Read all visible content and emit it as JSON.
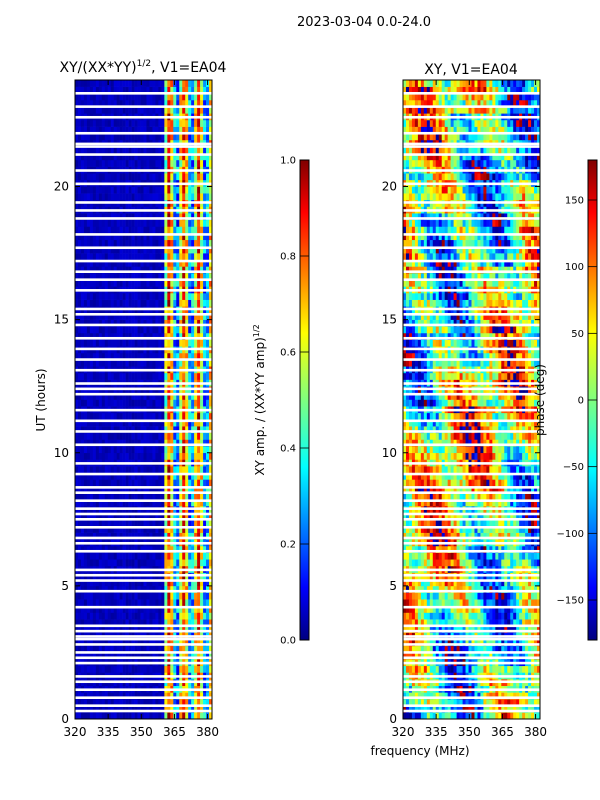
{
  "suptitle": "2023-03-04 0.0-24.0",
  "colors": {
    "jet": [
      "#000080",
      "#0000ff",
      "#00ffff",
      "#7fff7f",
      "#ffff00",
      "#ff0000",
      "#800000"
    ],
    "gap": "#ffffff"
  },
  "chart_data": [
    {
      "type": "heatmap",
      "title_main": "XY/(XX*YY)",
      "title_exp": "1/2",
      "title_suffix": ", V1=EA04",
      "xlabel": "",
      "ylabel": "UT (hours)",
      "xlim": [
        320,
        382
      ],
      "ylim": [
        0,
        24
      ],
      "xticks": [
        320,
        335,
        350,
        365,
        380
      ],
      "yticks": [
        0,
        5,
        10,
        15,
        20
      ],
      "colorbar": {
        "label_main": "XY amp. / (XX*YY amp)",
        "label_exp": "1/2",
        "range": [
          0.0,
          1.0
        ],
        "ticks": [
          "0.0",
          "0.2",
          "0.4",
          "0.6",
          "0.8",
          "1.0"
        ],
        "tick_values": [
          0.0,
          0.2,
          0.4,
          0.6,
          0.8,
          1.0
        ]
      },
      "value_description": "low (~0.05) below 361 MHz; bright vertical bands 361-382 MHz"
    },
    {
      "type": "heatmap",
      "title": "XY, V1=EA04",
      "xlabel": "frequency (MHz)",
      "ylabel": "",
      "xlim": [
        320,
        382
      ],
      "ylim": [
        0,
        24
      ],
      "xticks": [
        320,
        335,
        350,
        365,
        380
      ],
      "yticks": [
        0,
        5,
        10,
        15,
        20
      ],
      "colorbar": {
        "label": "phase (deg)",
        "range": [
          -180,
          180
        ],
        "ticks": [
          "−150",
          "−100",
          "−50",
          "0",
          "50",
          "100",
          "150"
        ],
        "tick_values": [
          -150,
          -100,
          -50,
          0,
          50,
          100,
          150
        ]
      }
    }
  ],
  "flagged_hours": [
    0.3,
    0.5,
    0.8,
    1.1,
    1.4,
    1.6,
    2.1,
    2.3,
    2.5,
    2.8,
    3.0,
    3.1,
    3.3,
    3.5,
    4.2,
    4.8,
    5.2,
    5.4,
    5.6,
    6.3,
    6.6,
    6.8,
    7.2,
    7.5,
    7.7,
    7.9,
    8.2,
    8.5,
    8.7,
    9.2,
    9.6,
    10.3,
    10.8,
    11.2,
    11.6,
    12.2,
    12.4,
    12.6,
    13.1,
    13.5,
    13.9,
    14.3,
    14.8,
    15.2,
    15.4,
    16.1,
    16.5,
    16.8,
    17.2,
    17.7,
    18.2,
    18.8,
    19.1,
    19.4,
    20.1,
    20.6,
    21.2,
    21.5,
    21.6,
    22.0,
    22.6,
    23.0,
    23.5
  ]
}
